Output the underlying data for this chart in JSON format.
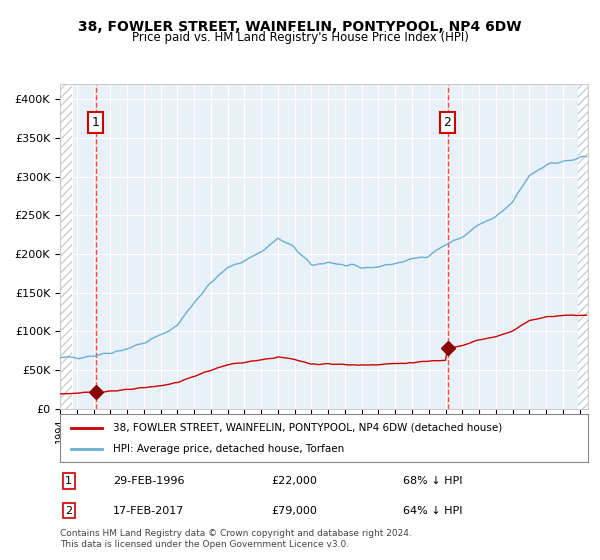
{
  "title": "38, FOWLER STREET, WAINFELIN, PONTYPOOL, NP4 6DW",
  "subtitle": "Price paid vs. HM Land Registry's House Price Index (HPI)",
  "legend_line1": "38, FOWLER STREET, WAINFELIN, PONTYPOOL, NP4 6DW (detached house)",
  "legend_line2": "HPI: Average price, detached house, Torfaen",
  "transaction1_label": "1",
  "transaction1_date": "29-FEB-1996",
  "transaction1_price": "£22,000",
  "transaction1_hpi": "68% ↓ HPI",
  "transaction2_label": "2",
  "transaction2_date": "17-FEB-2017",
  "transaction2_price": "£79,000",
  "transaction2_hpi": "64% ↓ HPI",
  "footer": "Contains HM Land Registry data © Crown copyright and database right 2024.\nThis data is licensed under the Open Government Licence v3.0.",
  "hpi_line_color": "#6baed6",
  "price_line_color": "#cc0000",
  "dashed_line_color": "#ff4444",
  "marker_color": "#8b0000",
  "background_color": "#e8f0f8",
  "hatched_region_color": "#c8c8c8",
  "transaction1_x": 1996.12,
  "transaction1_y": 22000,
  "transaction2_x": 2017.12,
  "transaction2_y": 79000,
  "ylim": [
    0,
    420000
  ],
  "xlim_start": 1994.0,
  "xlim_end": 2025.5
}
